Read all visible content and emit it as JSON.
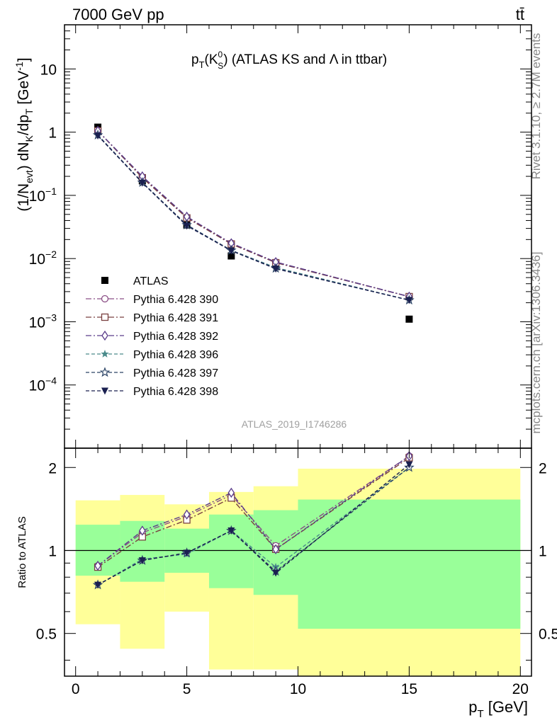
{
  "header": {
    "left": "7000 GeV pp",
    "right": "tt̄"
  },
  "side_labels": {
    "rivet": "Rivet 3.1.10, ≥ 2.7M events",
    "mcplots": "mcplots.cern.ch [arXiv:1306.3436]"
  },
  "chart_data": [
    {
      "type": "line",
      "title_main": "p",
      "title_sub": "T",
      "title_paren_open": "(K",
      "title_k_sup": "0",
      "title_k_sub": "S",
      "title_rest": ") (ATLAS KS and Λ in ttbar)",
      "ylabel_parts": {
        "pre": "(1/N",
        "evt": "evt",
        "mid": ") dN",
        "k": "K",
        "mid2": "/dp",
        "t": "T",
        "unit": " [GeV",
        "exp": "-1",
        "close": "]"
      },
      "watermark": "ATLAS_2019_I1746286",
      "yscale": "log",
      "xlim": [
        -0.5,
        20.5
      ],
      "ylim": [
        1e-05,
        50
      ],
      "y_ticks": [
        {
          "value": 10,
          "base": "10",
          "exp": ""
        },
        {
          "value": 1,
          "base": "1",
          "exp": ""
        },
        {
          "value": 0.1,
          "base": "10",
          "exp": "−1"
        },
        {
          "value": 0.01,
          "base": "10",
          "exp": "−2"
        },
        {
          "value": 0.001,
          "base": "10",
          "exp": "−3"
        },
        {
          "value": 0.0001,
          "base": "10",
          "exp": "−4"
        }
      ],
      "x": [
        1,
        3,
        5,
        7,
        9,
        15
      ],
      "series": [
        {
          "name": "ATLAS",
          "values": [
            1.2,
            0.17,
            0.034,
            0.011,
            0.0085,
            0.0011
          ],
          "color": "#000000",
          "marker": "filled-square",
          "line": "none"
        },
        {
          "name": "Pythia 6.428 390",
          "values": [
            1.05,
            0.195,
            0.045,
            0.0175,
            0.0088,
            0.0025
          ],
          "color": "#8b4f86",
          "marker": "open-circle",
          "line": "dashdot"
        },
        {
          "name": "Pythia 6.428 391",
          "values": [
            1.05,
            0.19,
            0.044,
            0.017,
            0.0086,
            0.0025
          ],
          "color": "#7a4040",
          "marker": "open-square",
          "line": "dashdot"
        },
        {
          "name": "Pythia 6.428 392",
          "values": [
            1.05,
            0.2,
            0.046,
            0.0175,
            0.0088,
            0.0025
          ],
          "color": "#5a3c8a",
          "marker": "open-diamond",
          "line": "dashdot"
        },
        {
          "name": "Pythia 6.428 396",
          "values": [
            0.9,
            0.16,
            0.034,
            0.0135,
            0.0072,
            0.0022
          ],
          "color": "#4a8a8a",
          "marker": "filled-star",
          "line": "dashed"
        },
        {
          "name": "Pythia 6.428 397",
          "values": [
            0.9,
            0.16,
            0.034,
            0.0135,
            0.007,
            0.0022
          ],
          "color": "#2c4466",
          "marker": "open-star",
          "line": "dashed"
        },
        {
          "name": "Pythia 6.428 398",
          "values": [
            0.88,
            0.158,
            0.033,
            0.0133,
            0.0069,
            0.0022
          ],
          "color": "#1a2050",
          "marker": "filled-triangle-down",
          "line": "dashed"
        }
      ]
    },
    {
      "type": "line",
      "ylabel": "Ratio to ATLAS",
      "xlabel_main": "p",
      "xlabel_sub": "T",
      "xlabel_unit": " [GeV]",
      "yscale": "log",
      "xlim": [
        -0.5,
        20.5
      ],
      "ylim": [
        0.35,
        2.35
      ],
      "x_ticks": [
        "0",
        "5",
        "10",
        "15",
        "20"
      ],
      "y_ticks_left": [
        {
          "value": 2,
          "label": "2"
        },
        {
          "value": 1,
          "label": "1"
        },
        {
          "value": 0.5,
          "label": "0.5"
        }
      ],
      "y_ticks_right": [
        {
          "value": 2,
          "label": "2"
        },
        {
          "value": 1,
          "label": "1"
        },
        {
          "value": 0.5,
          "label": "0.5"
        }
      ],
      "bands": [
        {
          "xlo": 0,
          "xhi": 2,
          "inner": [
            0.81,
            1.24
          ],
          "outer": [
            0.54,
            1.52
          ]
        },
        {
          "xlo": 2,
          "xhi": 4,
          "inner": [
            0.77,
            1.28
          ],
          "outer": [
            0.44,
            1.59
          ]
        },
        {
          "xlo": 4,
          "xhi": 6,
          "inner": [
            0.83,
            1.2
          ],
          "outer": [
            0.6,
            1.47
          ]
        },
        {
          "xlo": 6,
          "xhi": 8,
          "inner": [
            0.73,
            1.35
          ],
          "outer": [
            0.37,
            1.63
          ]
        },
        {
          "xlo": 8,
          "xhi": 10,
          "inner": [
            0.69,
            1.4
          ],
          "outer": [
            0.37,
            1.71
          ]
        },
        {
          "xlo": 10,
          "xhi": 20,
          "inner": [
            0.52,
            1.53
          ],
          "outer": [
            0.35,
            1.98
          ]
        }
      ],
      "band_colors": {
        "inner": "#99ff99",
        "outer": "#ffff99"
      },
      "series": [
        {
          "name": "Pythia 6.428 390",
          "values": [
            0.88,
            1.16,
            1.33,
            1.59,
            1.04,
            2.2
          ]
        },
        {
          "name": "Pythia 6.428 391",
          "values": [
            0.87,
            1.12,
            1.29,
            1.55,
            1.01,
            2.17
          ]
        },
        {
          "name": "Pythia 6.428 392",
          "values": [
            0.88,
            1.18,
            1.35,
            1.62,
            1.01,
            2.2
          ]
        },
        {
          "name": "Pythia 6.428 396",
          "values": [
            0.75,
            0.93,
            0.97,
            1.18,
            0.87,
            2.0
          ]
        },
        {
          "name": "Pythia 6.428 397",
          "values": [
            0.75,
            0.92,
            0.98,
            1.18,
            0.84,
            2.0
          ]
        },
        {
          "name": "Pythia 6.428 398",
          "values": [
            0.75,
            0.92,
            0.98,
            1.18,
            0.83,
            2.05
          ]
        }
      ]
    }
  ]
}
